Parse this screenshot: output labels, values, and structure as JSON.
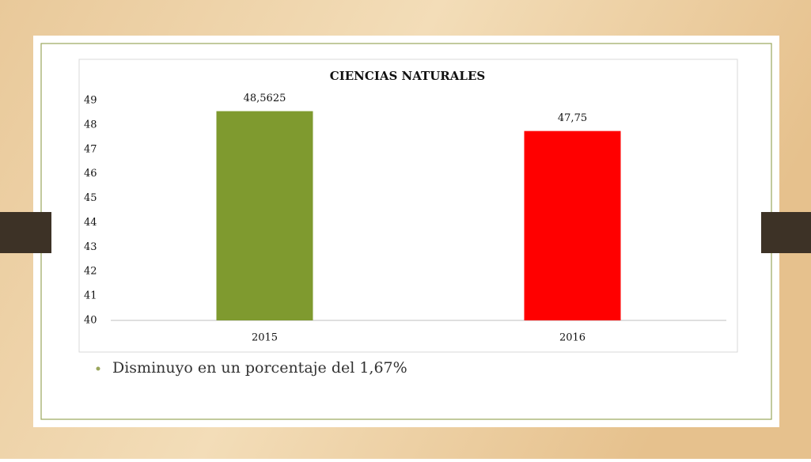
{
  "chart_data": {
    "type": "bar",
    "title": "CIENCIAS  NATURALES",
    "categories": [
      "2015",
      "2016"
    ],
    "values": [
      48.5625,
      47.75
    ],
    "value_labels": [
      "48,5625",
      "47,75"
    ],
    "colors": [
      "#7f9a2f",
      "#ff0000"
    ],
    "ylim": [
      40,
      49
    ],
    "yticks": [
      40,
      41,
      42,
      43,
      44,
      45,
      46,
      47,
      48,
      49
    ],
    "grid": false
  },
  "bullets": [
    "Disminuyo en un porcentaje del 1,67%"
  ]
}
